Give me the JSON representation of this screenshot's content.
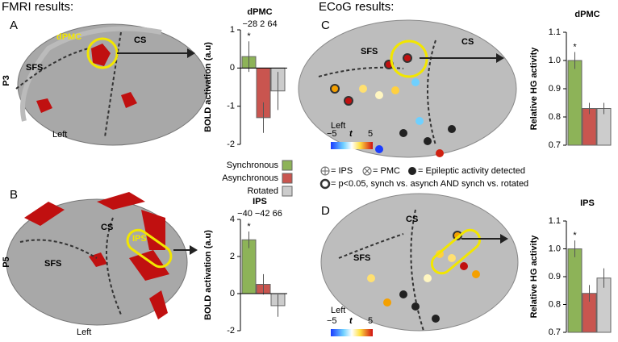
{
  "figure": {
    "fmri_heading": "FMRI results:",
    "ecog_heading": "ECoG results:",
    "letters": [
      "A",
      "B",
      "C",
      "D"
    ],
    "brain_a": {
      "region": "dPMC",
      "cs": "CS",
      "sfs": "SFS",
      "left": "Left",
      "patient": "P3"
    },
    "brain_b": {
      "region": "IPS",
      "cs": "CS",
      "sfs": "SFS",
      "left": "Left",
      "patient": "P5"
    },
    "brain_c": {
      "sfs": "SFS",
      "cs": "CS",
      "left": "Left",
      "cmin": "−5",
      "cvar": "t",
      "cmax": "5"
    },
    "brain_d": {
      "cs": "CS",
      "sfs": "SFS",
      "left": "Left",
      "cmin": "−5",
      "cvar": "t",
      "cmax": "5"
    },
    "key": [
      "= IPS",
      "= PMC",
      "= Epileptic activity detected",
      "= p<0.05, synch vs. asynch AND synch vs. rotated"
    ]
  },
  "legend": {
    "items": [
      {
        "name": "Synchronous",
        "color": "#8db358"
      },
      {
        "name": "Asynchronous",
        "color": "#c9554f"
      },
      {
        "name": "Rotated",
        "color": "#cccccc"
      }
    ]
  },
  "chart_data": [
    {
      "type": "bar",
      "title": "dPMC",
      "subtitle": "−28 2 64",
      "annotation": "*",
      "ylabel": "BOLD activation (a.u)",
      "values": [
        0.3,
        -1.3,
        -0.6
      ],
      "errors": [
        0.4,
        0.4,
        0.5
      ],
      "ylim": [
        -2,
        1
      ],
      "yticks": [
        -2,
        -1,
        0,
        1
      ]
    },
    {
      "type": "bar",
      "title": "IPS",
      "subtitle": "−40 −42 66",
      "annotation": "*",
      "ylabel": "BOLD activation (a.u)",
      "values": [
        2.9,
        0.5,
        -0.65
      ],
      "errors": [
        0.45,
        0.55,
        0.6
      ],
      "ylim": [
        -2,
        4
      ],
      "yticks": [
        -2,
        0,
        2,
        4
      ]
    },
    {
      "type": "bar",
      "title": "dPMC",
      "annotation": "*",
      "ylabel": "Relative HG activity",
      "values": [
        1.0,
        0.83,
        0.83
      ],
      "errors": [
        0.03,
        0.02,
        0.02
      ],
      "ylim": [
        0.7,
        1.1
      ],
      "yticks": [
        0.7,
        0.8,
        0.9,
        {
          "value": 1,
          "label": "1.0"
        },
        1.1
      ]
    },
    {
      "type": "bar",
      "title": "IPS",
      "annotation": "*",
      "ylabel": "Relative HG activity",
      "values": [
        1.0,
        0.84,
        0.895
      ],
      "errors": [
        0.03,
        0.03,
        0.035
      ],
      "ylim": [
        0.7,
        1.1
      ],
      "yticks": [
        0.7,
        0.8,
        0.9,
        {
          "value": 1,
          "label": "1.0"
        },
        1.1
      ]
    }
  ]
}
